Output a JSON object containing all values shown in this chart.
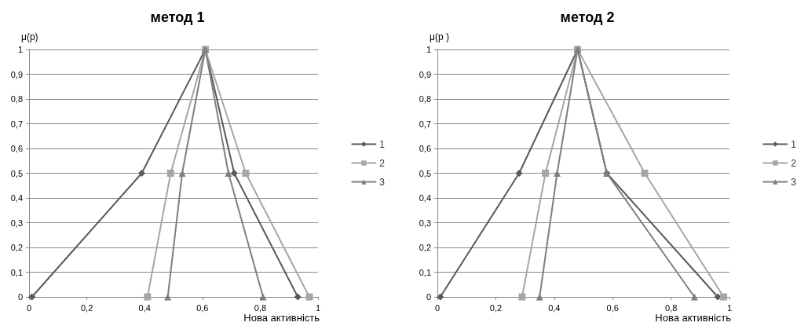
{
  "chart_data": [
    {
      "type": "line",
      "title": "метод 1",
      "xlabel": "Нова активність",
      "ylabel": "μ(p)",
      "xlim": [
        0,
        1
      ],
      "ylim": [
        0,
        1
      ],
      "grid": "y",
      "legend": "right",
      "line_style": "solid",
      "xticks": [
        {
          "value": 0,
          "label": "0"
        },
        {
          "value": 0.2,
          "label": "0,2"
        },
        {
          "value": 0.4,
          "label": "0,4"
        },
        {
          "value": 0.6,
          "label": "0,6"
        },
        {
          "value": 0.8,
          "label": "0,8"
        },
        {
          "value": 1,
          "label": "1"
        }
      ],
      "yticks": [
        {
          "value": 0,
          "label": "0"
        },
        {
          "value": 0.1,
          "label": "0,1"
        },
        {
          "value": 0.2,
          "label": "0,2"
        },
        {
          "value": 0.3,
          "label": "0,3"
        },
        {
          "value": 0.4,
          "label": "0,4"
        },
        {
          "value": 0.5,
          "label": "0,5"
        },
        {
          "value": 0.6,
          "label": "0,6"
        },
        {
          "value": 0.7,
          "label": "0,7"
        },
        {
          "value": 0.8,
          "label": "0,8"
        },
        {
          "value": 0.9,
          "label": "0,9"
        },
        {
          "value": 1,
          "label": "1"
        }
      ],
      "series": [
        {
          "name": "1",
          "color": "#595959",
          "marker": "diamond",
          "x": [
            0.01,
            0.39,
            0.61,
            0.71,
            0.93
          ],
          "values": [
            0,
            0.5,
            1,
            0.5,
            0
          ]
        },
        {
          "name": "2",
          "color": "#a6a6a6",
          "marker": "square",
          "x": [
            0.41,
            0.49,
            0.61,
            0.75,
            0.97
          ],
          "values": [
            0,
            0.5,
            1,
            0.5,
            0
          ]
        },
        {
          "name": "3",
          "color": "#7f7f7f",
          "marker": "triangle",
          "x": [
            0.48,
            0.53,
            0.61,
            0.69,
            0.81
          ],
          "values": [
            0,
            0.5,
            1,
            0.5,
            0
          ]
        }
      ]
    },
    {
      "type": "line",
      "title": "метод 2",
      "xlabel": "Нова активність",
      "ylabel": "μ(p )",
      "xlim": [
        0,
        1
      ],
      "ylim": [
        0,
        1
      ],
      "grid": "y",
      "legend": "right",
      "line_style": "solid",
      "xticks": [
        {
          "value": 0,
          "label": "0"
        },
        {
          "value": 0.2,
          "label": "0,2"
        },
        {
          "value": 0.4,
          "label": "0,4"
        },
        {
          "value": 0.6,
          "label": "0,6"
        },
        {
          "value": 0.8,
          "label": "0,8"
        },
        {
          "value": 1,
          "label": "1"
        }
      ],
      "yticks": [
        {
          "value": 0,
          "label": "0"
        },
        {
          "value": 0.1,
          "label": "0,1"
        },
        {
          "value": 0.2,
          "label": "0,2"
        },
        {
          "value": 0.3,
          "label": "0,3"
        },
        {
          "value": 0.4,
          "label": "0,4"
        },
        {
          "value": 0.5,
          "label": "0,5"
        },
        {
          "value": 0.6,
          "label": "0,6"
        },
        {
          "value": 0.7,
          "label": "0,7"
        },
        {
          "value": 0.8,
          "label": "0,8"
        },
        {
          "value": 0.9,
          "label": "0,9"
        },
        {
          "value": 1,
          "label": "1"
        }
      ],
      "series": [
        {
          "name": "1",
          "color": "#595959",
          "marker": "diamond",
          "x": [
            0.01,
            0.28,
            0.48,
            0.58,
            0.96
          ],
          "values": [
            0,
            0.5,
            1,
            0.5,
            0
          ]
        },
        {
          "name": "2",
          "color": "#a6a6a6",
          "marker": "square",
          "x": [
            0.29,
            0.37,
            0.48,
            0.71,
            0.98
          ],
          "values": [
            0,
            0.5,
            1,
            0.5,
            0
          ]
        },
        {
          "name": "3",
          "color": "#7f7f7f",
          "marker": "triangle",
          "x": [
            0.35,
            0.41,
            0.48,
            0.58,
            0.88
          ],
          "values": [
            0,
            0.5,
            1,
            0.5,
            0
          ]
        }
      ]
    }
  ]
}
